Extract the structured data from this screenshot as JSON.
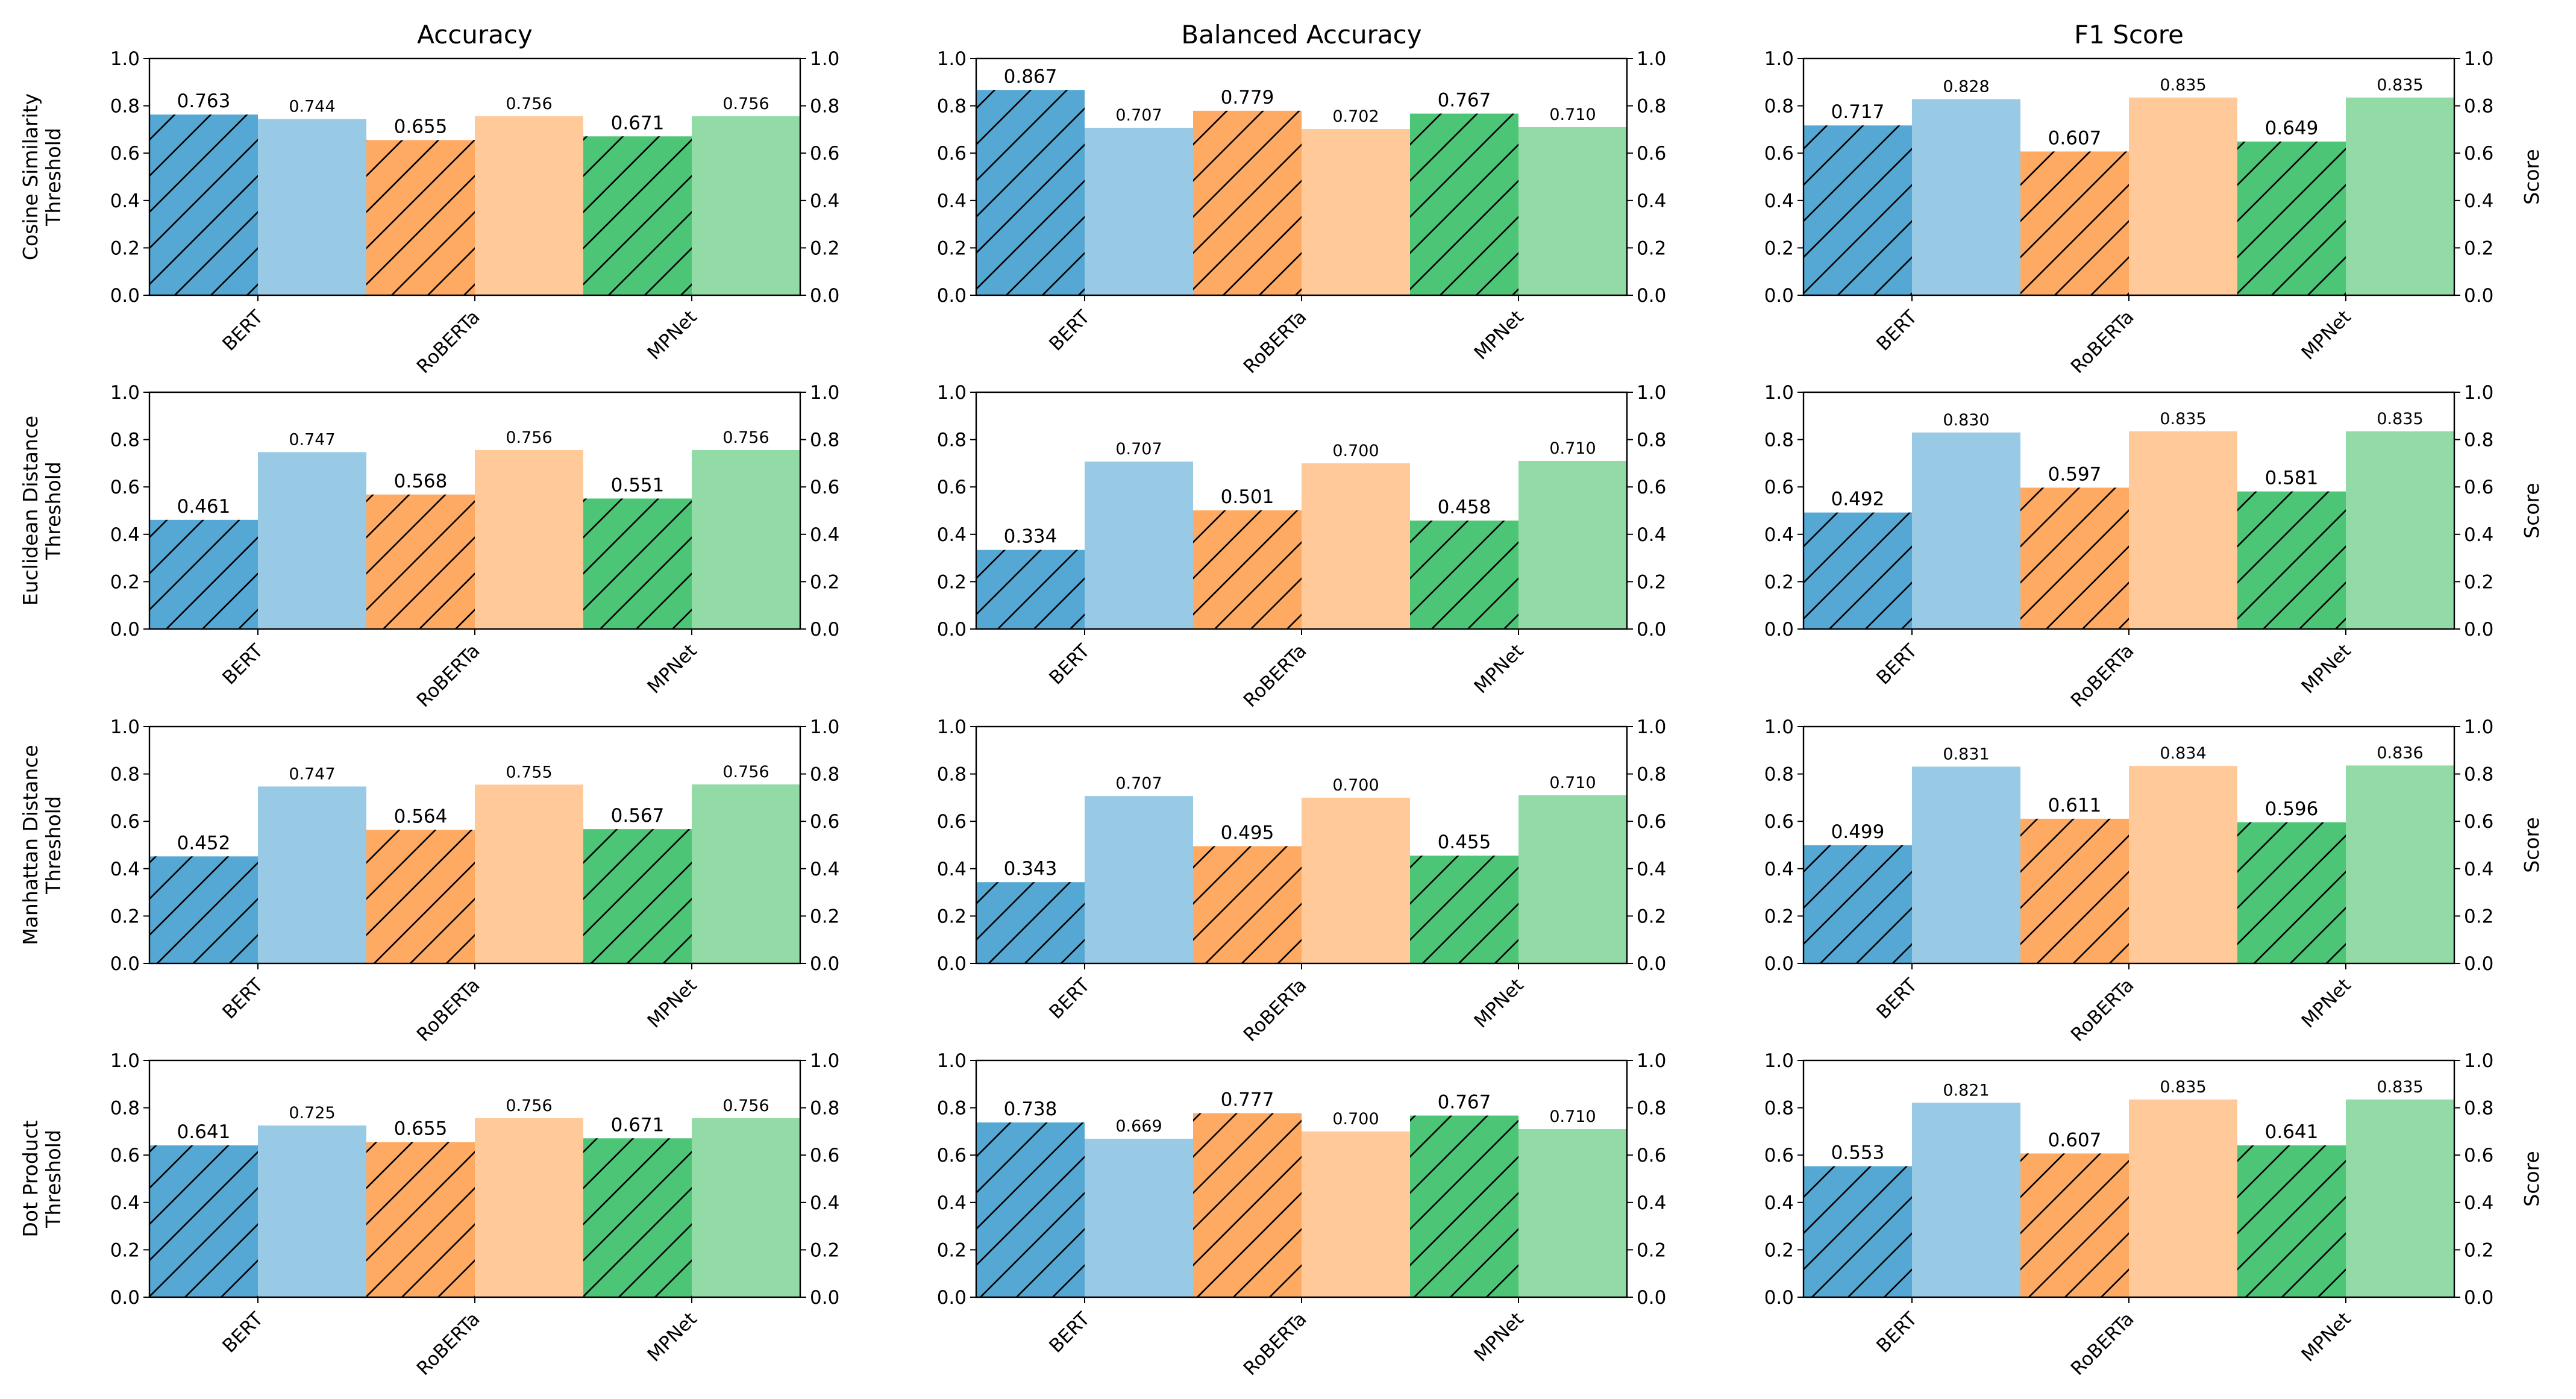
{
  "chart_data": {
    "type": "bar",
    "layout": "4x3 grid of grouped bar charts with twin y-axes",
    "column_titles": [
      "Accuracy",
      "Balanced Accuracy",
      "F1 Score"
    ],
    "row_labels": [
      [
        "Cosine Similarity",
        "Threshold"
      ],
      [
        "Euclidean Distance",
        "Threshold"
      ],
      [
        "Manhattan Distance",
        "Threshold"
      ],
      [
        "Dot Product",
        "Threshold"
      ]
    ],
    "categories": [
      "BERT",
      "RoBERTa",
      "MPNet"
    ],
    "secondary_ylabel": "Score",
    "ylim": [
      0,
      1.0
    ],
    "yticks": [
      "0.0",
      "0.2",
      "0.4",
      "0.6",
      "0.8",
      "1.0"
    ],
    "colors": {
      "BERT": {
        "threshold": "#56a8d4",
        "score": "#98c9e5"
      },
      "RoBERTa": {
        "threshold": "#ffaa63",
        "score": "#ffc99a"
      },
      "MPNet": {
        "threshold": "#4dc576",
        "score": "#93dba6"
      }
    },
    "panels": [
      [
        {
          "left": [
            0.763,
            0.655,
            0.671
          ],
          "right": [
            0.744,
            0.756,
            0.756
          ],
          "left_labels": [
            "0.763",
            "0.655",
            "0.671"
          ],
          "right_labels": [
            "0.744",
            "0.756",
            "0.756"
          ]
        },
        {
          "left": [
            0.867,
            0.779,
            0.767
          ],
          "right": [
            0.707,
            0.702,
            0.71
          ],
          "left_labels": [
            "0.867",
            "0.779",
            "0.767"
          ],
          "right_labels": [
            "0.707",
            "0.702",
            "0.710"
          ]
        },
        {
          "left": [
            0.717,
            0.607,
            0.649
          ],
          "right": [
            0.828,
            0.835,
            0.835
          ],
          "left_labels": [
            "0.717",
            "0.607",
            "0.649"
          ],
          "right_labels": [
            "0.828",
            "0.835",
            "0.835"
          ]
        }
      ],
      [
        {
          "left": [
            0.461,
            0.568,
            0.551
          ],
          "right": [
            0.747,
            0.756,
            0.756
          ],
          "left_labels": [
            "0.461",
            "0.568",
            "0.551"
          ],
          "right_labels": [
            "0.747",
            "0.756",
            "0.756"
          ]
        },
        {
          "left": [
            0.334,
            0.501,
            0.458
          ],
          "right": [
            0.707,
            0.7,
            0.71
          ],
          "left_labels": [
            "0.334",
            "0.501",
            "0.458"
          ],
          "right_labels": [
            "0.707",
            "0.700",
            "0.710"
          ]
        },
        {
          "left": [
            0.492,
            0.597,
            0.581
          ],
          "right": [
            0.83,
            0.835,
            0.835
          ],
          "left_labels": [
            "0.492",
            "0.597",
            "0.581"
          ],
          "right_labels": [
            "0.830",
            "0.835",
            "0.835"
          ]
        }
      ],
      [
        {
          "left": [
            0.452,
            0.564,
            0.567
          ],
          "right": [
            0.747,
            0.755,
            0.756
          ],
          "left_labels": [
            "0.452",
            "0.564",
            "0.567"
          ],
          "right_labels": [
            "0.747",
            "0.755",
            "0.756"
          ]
        },
        {
          "left": [
            0.343,
            0.495,
            0.455
          ],
          "right": [
            0.707,
            0.7,
            0.71
          ],
          "left_labels": [
            "0.343",
            "0.495",
            "0.455"
          ],
          "right_labels": [
            "0.707",
            "0.700",
            "0.710"
          ]
        },
        {
          "left": [
            0.499,
            0.611,
            0.596
          ],
          "right": [
            0.831,
            0.834,
            0.836
          ],
          "left_labels": [
            "0.499",
            "0.611",
            "0.596"
          ],
          "right_labels": [
            "0.831",
            "0.834",
            "0.836"
          ]
        }
      ],
      [
        {
          "left": [
            0.641,
            0.655,
            0.671
          ],
          "right": [
            0.725,
            0.756,
            0.756
          ],
          "left_labels": [
            "0.641",
            "0.655",
            "0.671"
          ],
          "right_labels": [
            "0.725",
            "0.756",
            "0.756"
          ]
        },
        {
          "left": [
            0.738,
            0.777,
            0.767
          ],
          "right": [
            0.669,
            0.7,
            0.71
          ],
          "left_labels": [
            "0.738",
            "0.777",
            "0.767"
          ],
          "right_labels": [
            "0.669",
            "0.700",
            "0.710"
          ]
        },
        {
          "left": [
            0.553,
            0.607,
            0.641
          ],
          "right": [
            0.821,
            0.835,
            0.835
          ],
          "left_labels": [
            "0.553",
            "0.607",
            "0.641"
          ],
          "right_labels": [
            "0.821",
            "0.835",
            "0.835"
          ]
        }
      ]
    ]
  }
}
